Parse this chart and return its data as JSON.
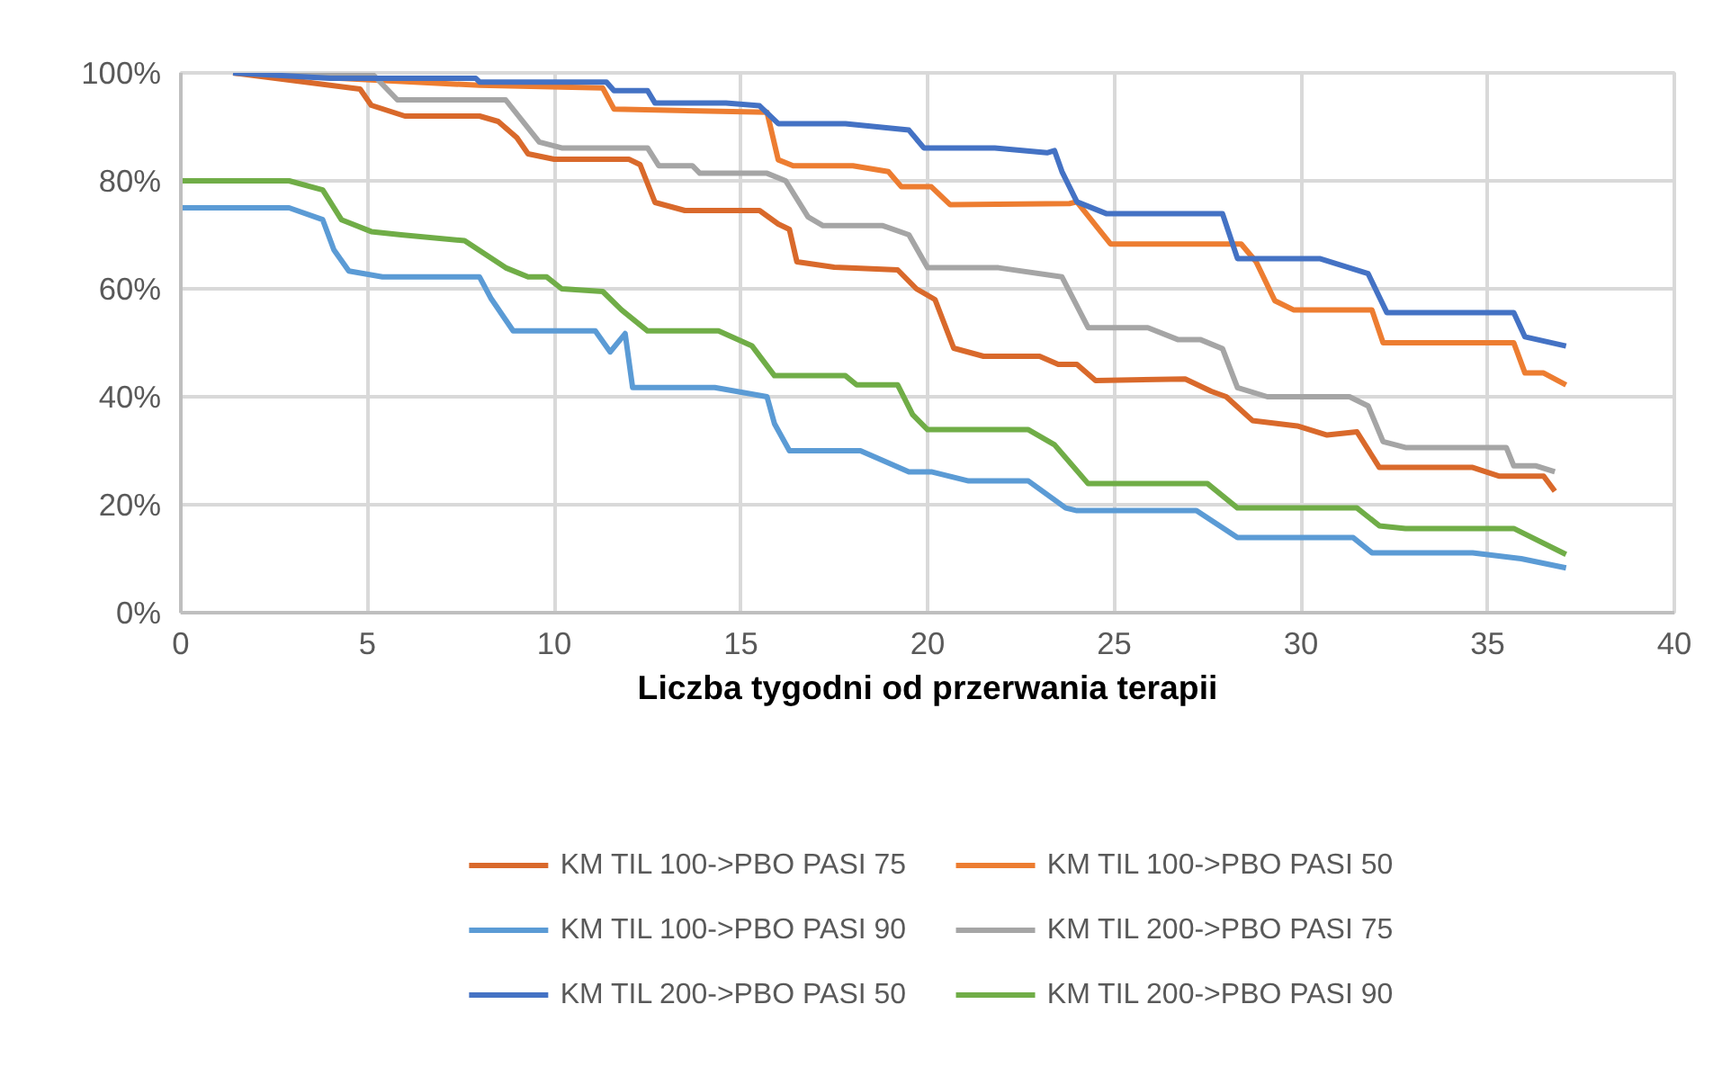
{
  "chart_data": {
    "type": "line",
    "xlabel": "Liczba tygodni od przerwania terapii",
    "xlim": [
      0,
      40
    ],
    "xticks": [
      0,
      5,
      10,
      15,
      20,
      25,
      30,
      35,
      40
    ],
    "ylim": [
      0,
      100
    ],
    "yticks": [
      {
        "value": 0,
        "label": "0%"
      },
      {
        "value": 20,
        "label": "20%"
      },
      {
        "value": 40,
        "label": "40%"
      },
      {
        "value": 60,
        "label": "60%"
      },
      {
        "value": 80,
        "label": "80%"
      },
      {
        "value": 100,
        "label": "100%"
      }
    ],
    "grid": true,
    "legend": "bottom",
    "marker": "none",
    "line_style": "solid",
    "series": [
      {
        "name": "KM TIL 100->PBO PASI 75",
        "color": "#d9692b",
        "x": [
          1.4,
          4.8,
          5.1,
          6,
          8,
          8.5,
          9,
          9.3,
          10,
          12,
          12.3,
          12.7,
          13.5,
          15.5,
          16,
          16.3,
          16.5,
          17.5,
          19.2,
          19.7,
          20.2,
          20.7,
          21.5,
          23,
          23.5,
          24,
          24.5,
          26.9,
          27.6,
          28,
          28.7,
          29.9,
          30.7,
          31.5,
          32.1,
          34.6,
          35.3,
          36.5,
          36.8
        ],
        "values": [
          100,
          97,
          94,
          92,
          92,
          91,
          88,
          85,
          84,
          84,
          83,
          76,
          74.5,
          74.5,
          72,
          71,
          65,
          64,
          63.5,
          60,
          58,
          49,
          47.5,
          47.5,
          46,
          46,
          43,
          43.3,
          41,
          40,
          35.6,
          34.6,
          32.9,
          33.5,
          26.9,
          26.9,
          25.3,
          25.3,
          22.5
        ]
      },
      {
        "name": "KM TIL 100->PBO PASI 50",
        "color": "#ed7d31",
        "x": [
          1.4,
          8,
          11.3,
          11.6,
          15.7,
          16,
          16.4,
          18,
          18.95,
          19.3,
          20.1,
          20.6,
          23.8,
          24,
          24.9,
          28.4,
          28.8,
          29.3,
          29.8,
          31.9,
          32.2,
          35.7,
          36,
          36.5,
          37.1
        ],
        "values": [
          100,
          97.7,
          97.2,
          93.3,
          92.7,
          83.9,
          82.8,
          82.8,
          81.7,
          78.9,
          78.9,
          75.6,
          75.8,
          76.1,
          68.3,
          68.3,
          65,
          57.8,
          56.1,
          56.1,
          50,
          50,
          44.4,
          44.4,
          42.2
        ]
      },
      {
        "name": "KM TIL 100->PBO PASI 90",
        "color": "#5b9bd5",
        "x": [
          0,
          2.9,
          3.8,
          4.1,
          4.5,
          5.4,
          8,
          8.3,
          8.9,
          11.1,
          11.5,
          11.9,
          12.1,
          14.3,
          15.7,
          15.9,
          16.3,
          18.2,
          19.5,
          20.1,
          21.1,
          22.7,
          23.7,
          24,
          27.2,
          28.3,
          31.4,
          31.9,
          34.6,
          35.9,
          37.1
        ],
        "values": [
          75,
          75,
          72.8,
          67.2,
          63.3,
          62.2,
          62.2,
          58.3,
          52.2,
          52.2,
          48.3,
          51.7,
          41.7,
          41.7,
          40,
          35,
          30,
          30,
          26.1,
          26.1,
          24.4,
          24.4,
          19.4,
          18.9,
          18.9,
          13.9,
          13.9,
          11.1,
          11.1,
          10,
          8.3
        ]
      },
      {
        "name": "KM TIL 200->PBO PASI 75",
        "color": "#a5a5a5",
        "x": [
          1.4,
          5.1,
          5.8,
          8.7,
          9.6,
          10.2,
          12.5,
          12.8,
          13.7,
          13.9,
          15.7,
          16.2,
          16.8,
          17.2,
          18.8,
          19.5,
          20,
          21.9,
          23.6,
          24.3,
          25.9,
          26.7,
          27.3,
          27.9,
          28.3,
          29.1,
          31.3,
          31.8,
          32.2,
          32.8,
          35.5,
          35.7,
          36.3,
          36.8
        ],
        "values": [
          100,
          100,
          95,
          95,
          87.2,
          86.1,
          86.1,
          82.8,
          82.8,
          81.4,
          81.4,
          80,
          73.3,
          71.7,
          71.7,
          70,
          63.9,
          63.9,
          62.2,
          52.8,
          52.8,
          50.6,
          50.6,
          48.9,
          41.7,
          40,
          40,
          38.3,
          31.7,
          30.6,
          30.6,
          27.2,
          27.2,
          26.1
        ]
      },
      {
        "name": "KM TIL 200->PBO PASI 50",
        "color": "#4472c4",
        "x": [
          1.4,
          4,
          7.9,
          8,
          11.4,
          11.6,
          12.5,
          12.7,
          14.6,
          15.5,
          16,
          17.8,
          19.5,
          19.9,
          21.8,
          23.2,
          23.4,
          23.6,
          24,
          24.8,
          27.9,
          28.3,
          30.5,
          31.8,
          32.3,
          35.7,
          36,
          37.1
        ],
        "values": [
          100,
          99,
          99,
          98.3,
          98.3,
          96.7,
          96.7,
          94.4,
          94.4,
          93.9,
          90.6,
          90.6,
          89.4,
          86.1,
          86.1,
          85.2,
          85.6,
          81.7,
          76.1,
          73.9,
          73.9,
          65.6,
          65.6,
          62.8,
          55.6,
          55.6,
          51.1,
          49.4
        ]
      },
      {
        "name": "KM TIL 200->PBO PASI 90",
        "color": "#70ad47",
        "x": [
          0,
          2.9,
          3.8,
          4.3,
          5.1,
          5.9,
          7.6,
          8.7,
          9.3,
          9.8,
          10.2,
          11.3,
          11.8,
          12.5,
          14.4,
          15.3,
          15.9,
          17.8,
          18.1,
          19.2,
          19.6,
          20,
          22.7,
          23.4,
          24.3,
          27.5,
          28.3,
          31.5,
          32.1,
          32.8,
          35.7,
          37.1
        ],
        "values": [
          80,
          80,
          78.3,
          72.8,
          70.6,
          70,
          68.9,
          63.9,
          62.2,
          62.2,
          60,
          59.5,
          56.1,
          52.2,
          52.2,
          49.4,
          43.9,
          43.9,
          42.2,
          42.2,
          36.7,
          33.9,
          33.9,
          31.1,
          23.9,
          23.9,
          19.4,
          19.4,
          16.1,
          15.6,
          15.6,
          10.8
        ]
      }
    ]
  }
}
